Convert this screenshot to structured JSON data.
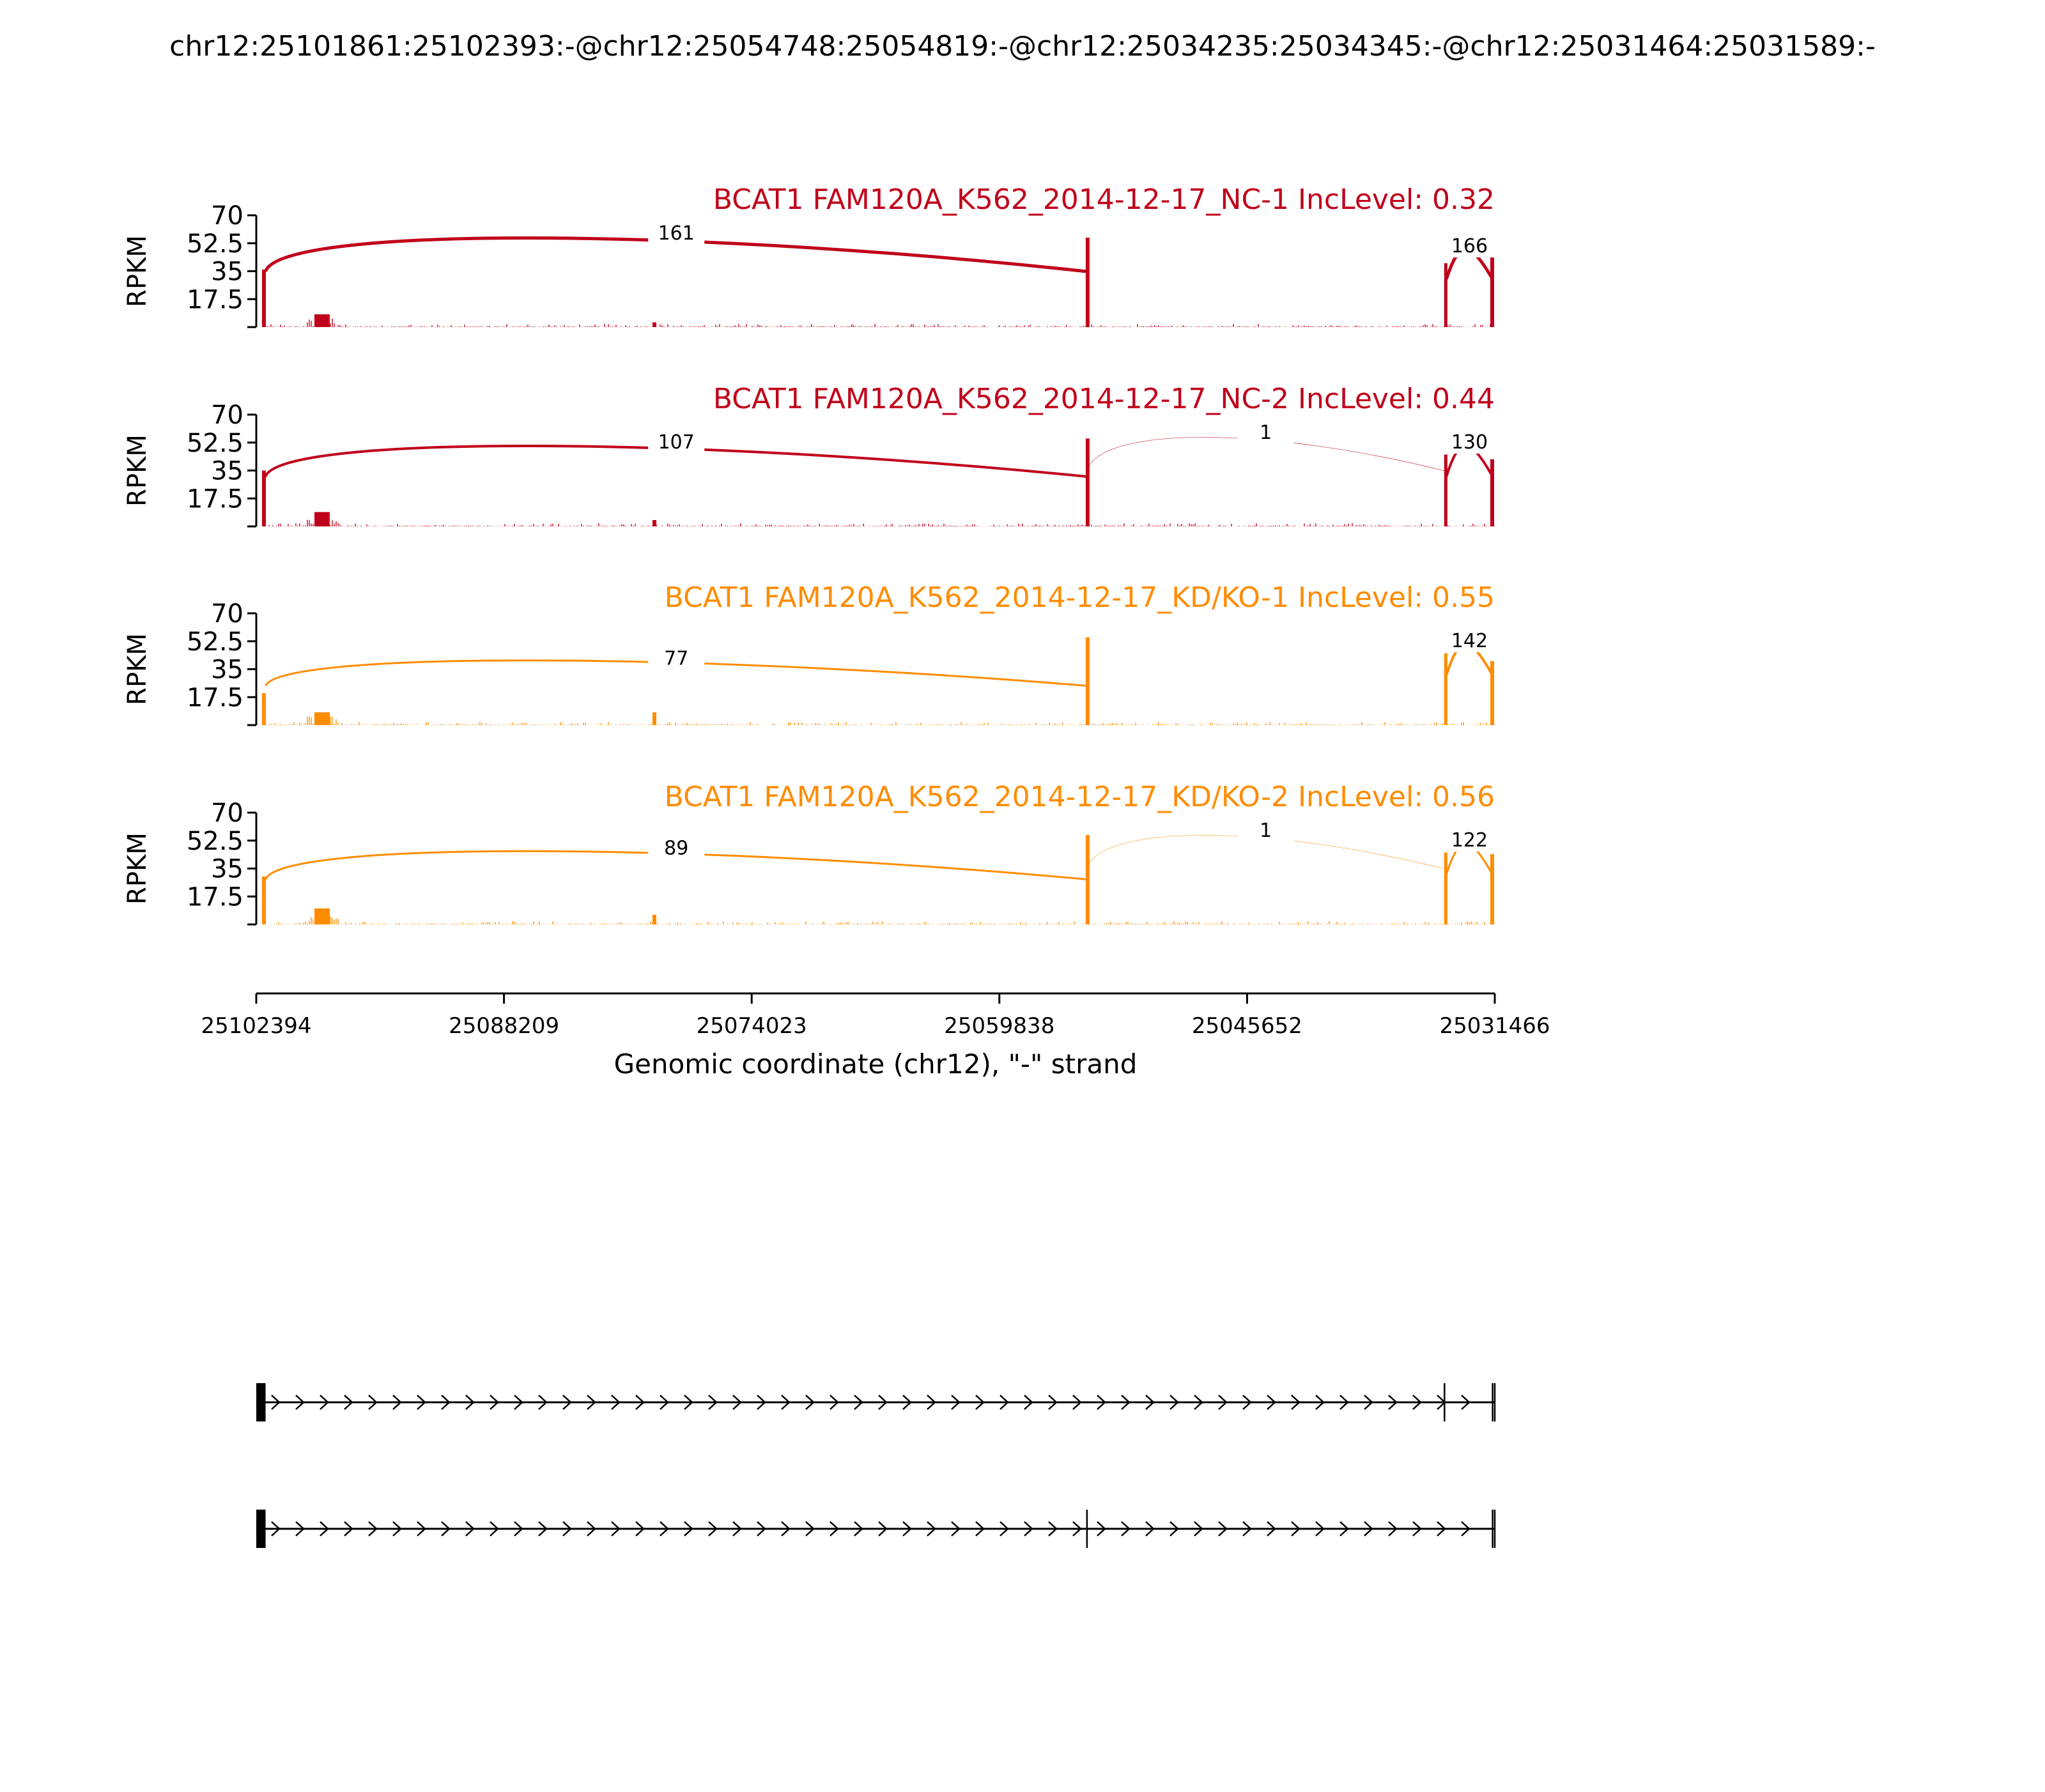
{
  "chart_data": {
    "type": "area",
    "title": "chr12:25101861:25102393:-@chr12:25054748:25054819:-@chr12:25034235:25034345:-@chr12:25031464:25031589:-",
    "xlabel": "Genomic coordinate (chr12), \"-\" strand",
    "ylabel": "RPKM",
    "x_range": [
      25102394,
      25031466
    ],
    "x_ticks": [
      "25102394",
      "25088209",
      "25074023",
      "25059838",
      "25045652",
      "25031466"
    ],
    "y_ticks": [
      "17.5",
      "35",
      "52.5",
      "70"
    ],
    "ylim": [
      0,
      70
    ],
    "exon_peaks": [
      {
        "start": 25102393,
        "end": 25101861
      },
      {
        "start": 25054819,
        "end": 25054748
      },
      {
        "start": 25034345,
        "end": 25034235
      },
      {
        "start": 25031589,
        "end": 25031466
      }
    ],
    "panels": [
      {
        "label": "BCAT1 FAM120A_K562_2014-12-17_NC-1 IncLevel: 0.32",
        "color": "#c0001a",
        "peaks": [
          36,
          8,
          3,
          56,
          40,
          45
        ],
        "junctions": [
          {
            "from": 25101861,
            "to": 25054819,
            "count": "161",
            "height": 58,
            "width": 5
          },
          {
            "from": 25034235,
            "to": 25031589,
            "count": "166",
            "height": 50,
            "width": 5
          }
        ]
      },
      {
        "label": "BCAT1 FAM120A_K562_2014-12-17_NC-2 IncLevel: 0.44",
        "color": "#c0001a",
        "peaks": [
          35,
          9,
          4,
          55,
          45,
          42
        ],
        "junctions": [
          {
            "from": 25101861,
            "to": 25054819,
            "count": "107",
            "height": 52,
            "width": 4
          },
          {
            "from": 25054819,
            "to": 25034345,
            "count": "1",
            "height": 58,
            "width": 0.6
          },
          {
            "from": 25034235,
            "to": 25031589,
            "count": "130",
            "height": 52,
            "width": 4
          }
        ]
      },
      {
        "label": "BCAT1 FAM120A_K562_2014-12-17_KD/KO-1 IncLevel: 0.55",
        "color": "#ff8c00",
        "peaks": [
          20,
          8,
          8,
          55,
          45,
          40
        ],
        "junctions": [
          {
            "from": 25101861,
            "to": 25054819,
            "count": "77",
            "height": 41,
            "width": 3
          },
          {
            "from": 25034235,
            "to": 25031589,
            "count": "142",
            "height": 52,
            "width": 4
          }
        ]
      },
      {
        "label": "BCAT1 FAM120A_K562_2014-12-17_KD/KO-2 IncLevel: 0.56",
        "color": "#ff8c00",
        "peaks": [
          30,
          10,
          6,
          56,
          45,
          44
        ],
        "junctions": [
          {
            "from": 25101861,
            "to": 25054819,
            "count": "89",
            "height": 47,
            "width": 3
          },
          {
            "from": 25054819,
            "to": 25034345,
            "count": "1",
            "height": 58,
            "width": 0.6
          },
          {
            "from": 25034235,
            "to": 25031589,
            "count": "122",
            "height": 52,
            "width": 3
          }
        ]
      }
    ],
    "isoforms": [
      {
        "exons": [
          [
            25102393,
            25101861
          ],
          [
            25034345,
            25034235
          ],
          [
            25031589,
            25031466
          ]
        ]
      },
      {
        "exons": [
          [
            25102393,
            25101861
          ],
          [
            25054819,
            25054748
          ],
          [
            25031589,
            25031466
          ]
        ]
      }
    ]
  }
}
